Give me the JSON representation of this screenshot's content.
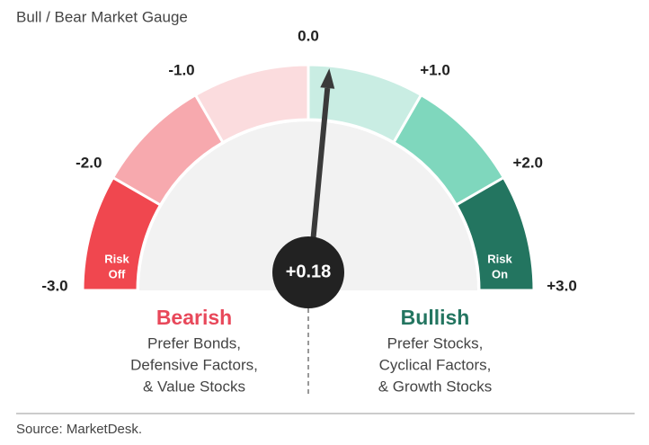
{
  "chart_data": {
    "type": "gauge",
    "title": "Bull / Bear Market Gauge",
    "range": [
      -3,
      3
    ],
    "ticks": [
      {
        "value": -3,
        "label": "-3.0"
      },
      {
        "value": -2,
        "label": "-2.0"
      },
      {
        "value": -1,
        "label": "-1.0"
      },
      {
        "value": 0,
        "label": "0.0"
      },
      {
        "value": 1,
        "label": "+1.0"
      },
      {
        "value": 2,
        "label": "+2.0"
      },
      {
        "value": 3,
        "label": "+3.0"
      }
    ],
    "bands": [
      {
        "from": -3,
        "to": -2,
        "color": "#f0474f",
        "label": [
          "Risk",
          "Off"
        ]
      },
      {
        "from": -2,
        "to": -1,
        "color": "#f7a9ae"
      },
      {
        "from": -1,
        "to": 0,
        "color": "#fbdcde"
      },
      {
        "from": 0,
        "to": 1,
        "color": "#c9ede3"
      },
      {
        "from": 1,
        "to": 2,
        "color": "#7fd7bd"
      },
      {
        "from": 2,
        "to": 3,
        "color": "#237560",
        "label": [
          "Risk",
          "On"
        ]
      }
    ],
    "value": 0.18,
    "value_label": "+0.18",
    "annotations": [
      {
        "title": "Bearish",
        "color": "#e8485a",
        "lines": [
          "Prefer Bonds,",
          "Defensive Factors,",
          "& Value Stocks"
        ]
      },
      {
        "title": "Bullish",
        "color": "#237560",
        "lines": [
          "Prefer Stocks,",
          "Cyclical Factors,",
          "& Growth Stocks"
        ]
      }
    ],
    "source": "Source: MarketDesk."
  }
}
